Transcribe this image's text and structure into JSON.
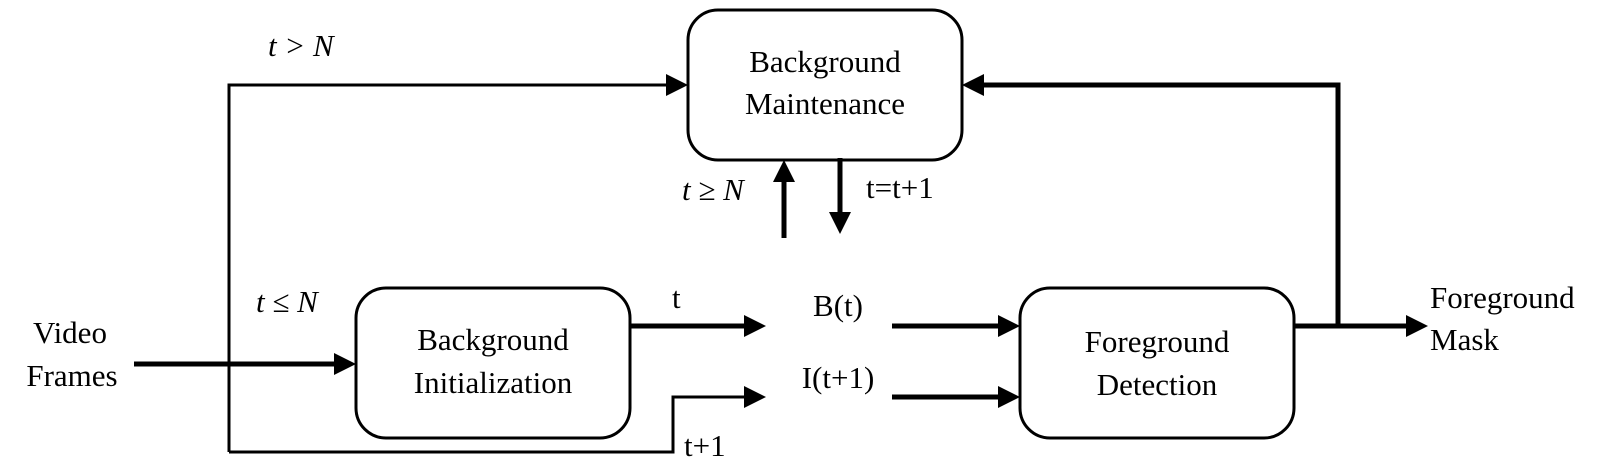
{
  "nodes": {
    "maintenance": {
      "line1": "Background",
      "line2": "Maintenance"
    },
    "initialization": {
      "line1": "Background",
      "line2": "Initialization"
    },
    "detection": {
      "line1": "Foreground",
      "line2": "Detection"
    }
  },
  "inputs": {
    "line1": "Video",
    "line2": "Frames"
  },
  "outputs": {
    "line1": "Foreground",
    "line2": "Mask"
  },
  "signals": {
    "background": "B(t)",
    "image": "I(t+1)"
  },
  "conditions": {
    "t_gt_n": "t > N",
    "t_le_n": "t ≤ N",
    "t_ge_n": "t ≥ N",
    "t_inc": "t=t+1",
    "t": "t",
    "t_plus_1": "t+1"
  }
}
